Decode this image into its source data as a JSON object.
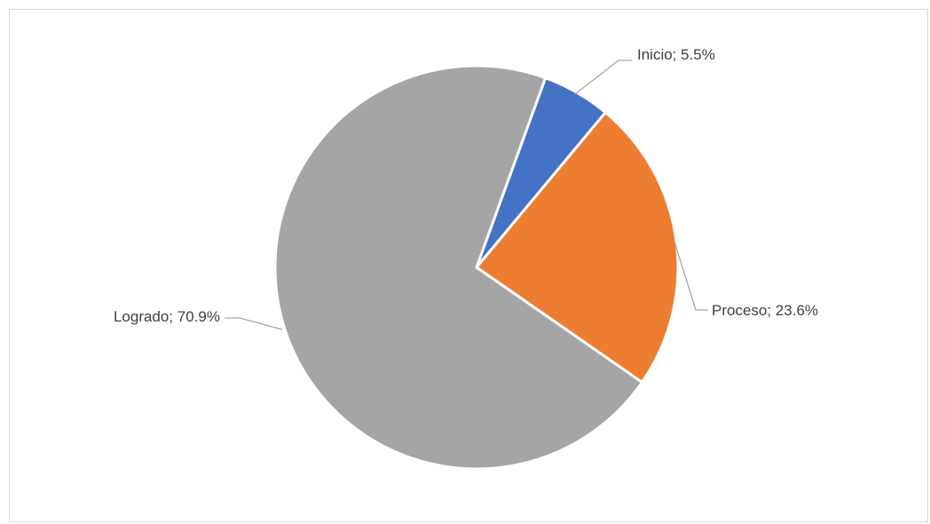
{
  "chart_data": {
    "type": "pie",
    "title": "",
    "slices": [
      {
        "label": "Inicio",
        "value": 5.5,
        "display": "Inicio; 5.5%",
        "color": "#4472c4"
      },
      {
        "label": "Proceso",
        "value": 23.6,
        "display": "Proceso; 23.6%",
        "color": "#ed7d31"
      },
      {
        "label": "Logrado",
        "value": 70.9,
        "display": "Logrado; 70.9%",
        "color": "#a5a5a5"
      }
    ],
    "start_angle_deg": 20,
    "direction": "clockwise",
    "legend": "none",
    "label_style": "outside-with-leader-lines"
  }
}
